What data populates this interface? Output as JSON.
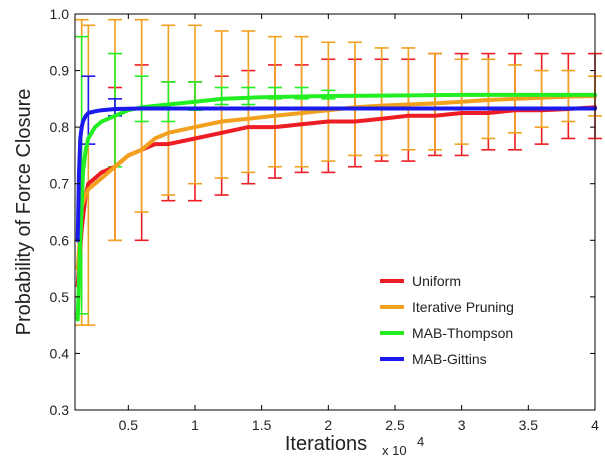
{
  "chart_data": {
    "type": "line",
    "xlabel": "Iterations",
    "x_multiplier": "x 10",
    "x_multiplier_exp": "4",
    "ylabel": "Probability of Force Closure",
    "xlim": [
      0.1,
      4
    ],
    "ylim": [
      0.3,
      1.0
    ],
    "x_ticks": [
      {
        "value": 0.5,
        "label": "0.5"
      },
      {
        "value": 1,
        "label": "1"
      },
      {
        "value": 1.5,
        "label": "1.5"
      },
      {
        "value": 2,
        "label": "2"
      },
      {
        "value": 2.5,
        "label": "2.5"
      },
      {
        "value": 3,
        "label": "3"
      },
      {
        "value": 3.5,
        "label": "3.5"
      },
      {
        "value": 4,
        "label": "4"
      }
    ],
    "y_ticks": [
      {
        "value": 0.3,
        "label": "0.3"
      },
      {
        "value": 0.4,
        "label": "0.4"
      },
      {
        "value": 0.5,
        "label": "0.5"
      },
      {
        "value": 0.6,
        "label": "0.6"
      },
      {
        "value": 0.7,
        "label": "0.7"
      },
      {
        "value": 0.8,
        "label": "0.8"
      },
      {
        "value": 0.9,
        "label": "0.9"
      },
      {
        "value": 1,
        "label": "1.0"
      }
    ],
    "grid": false,
    "legend_position": "lower-right",
    "series": [
      {
        "name": "Uniform",
        "color": "#ee1c24",
        "x": [
          0.12,
          0.15,
          0.18,
          0.2,
          0.25,
          0.3,
          0.4,
          0.5,
          0.6,
          0.7,
          0.8,
          1.0,
          1.2,
          1.4,
          1.6,
          1.8,
          2.0,
          2.2,
          2.4,
          2.6,
          2.8,
          3.0,
          3.2,
          3.4,
          3.6,
          3.8,
          4.0
        ],
        "y": [
          0.52,
          0.62,
          0.68,
          0.7,
          0.71,
          0.72,
          0.73,
          0.75,
          0.76,
          0.77,
          0.77,
          0.78,
          0.79,
          0.8,
          0.8,
          0.805,
          0.81,
          0.81,
          0.815,
          0.82,
          0.82,
          0.825,
          0.825,
          0.83,
          0.83,
          0.832,
          0.835
        ],
        "error_bars": [
          {
            "x": 0.4,
            "low": 0.6,
            "high": 0.87
          },
          {
            "x": 0.6,
            "low": 0.6,
            "high": 0.91
          },
          {
            "x": 0.8,
            "low": 0.67,
            "high": 0.88
          },
          {
            "x": 1.0,
            "low": 0.67,
            "high": 0.88
          },
          {
            "x": 1.2,
            "low": 0.68,
            "high": 0.89
          },
          {
            "x": 1.4,
            "low": 0.7,
            "high": 0.9
          },
          {
            "x": 1.6,
            "low": 0.71,
            "high": 0.91
          },
          {
            "x": 1.8,
            "low": 0.72,
            "high": 0.91
          },
          {
            "x": 2.0,
            "low": 0.72,
            "high": 0.92
          },
          {
            "x": 2.2,
            "low": 0.73,
            "high": 0.92
          },
          {
            "x": 2.4,
            "low": 0.74,
            "high": 0.92
          },
          {
            "x": 2.6,
            "low": 0.74,
            "high": 0.92
          },
          {
            "x": 2.8,
            "low": 0.75,
            "high": 0.93
          },
          {
            "x": 3.0,
            "low": 0.75,
            "high": 0.93
          },
          {
            "x": 3.2,
            "low": 0.76,
            "high": 0.93
          },
          {
            "x": 3.4,
            "low": 0.76,
            "high": 0.93
          },
          {
            "x": 3.6,
            "low": 0.77,
            "high": 0.93
          },
          {
            "x": 3.8,
            "low": 0.78,
            "high": 0.93
          },
          {
            "x": 4.0,
            "low": 0.78,
            "high": 0.93
          }
        ]
      },
      {
        "name": "Iterative Pruning",
        "color": "#f2a11e",
        "x": [
          0.12,
          0.15,
          0.18,
          0.2,
          0.25,
          0.3,
          0.4,
          0.5,
          0.6,
          0.7,
          0.8,
          1.0,
          1.2,
          1.4,
          1.6,
          1.8,
          2.0,
          2.2,
          2.4,
          2.6,
          2.8,
          3.0,
          3.2,
          3.4,
          3.6,
          3.8,
          4.0
        ],
        "y": [
          0.55,
          0.66,
          0.68,
          0.69,
          0.7,
          0.71,
          0.73,
          0.75,
          0.76,
          0.78,
          0.79,
          0.8,
          0.81,
          0.815,
          0.82,
          0.825,
          0.83,
          0.835,
          0.838,
          0.84,
          0.842,
          0.845,
          0.848,
          0.85,
          0.852,
          0.854,
          0.855
        ],
        "error_bars": [
          {
            "x": 0.15,
            "low": 0.45,
            "high": 0.99
          },
          {
            "x": 0.2,
            "low": 0.45,
            "high": 0.98
          },
          {
            "x": 0.4,
            "low": 0.6,
            "high": 0.99
          },
          {
            "x": 0.6,
            "low": 0.65,
            "high": 0.99
          },
          {
            "x": 0.8,
            "low": 0.68,
            "high": 0.98
          },
          {
            "x": 1.0,
            "low": 0.7,
            "high": 0.98
          },
          {
            "x": 1.2,
            "low": 0.71,
            "high": 0.97
          },
          {
            "x": 1.4,
            "low": 0.72,
            "high": 0.97
          },
          {
            "x": 1.6,
            "low": 0.73,
            "high": 0.96
          },
          {
            "x": 1.8,
            "low": 0.73,
            "high": 0.96
          },
          {
            "x": 2.0,
            "low": 0.74,
            "high": 0.95
          },
          {
            "x": 2.2,
            "low": 0.75,
            "high": 0.95
          },
          {
            "x": 2.4,
            "low": 0.75,
            "high": 0.94
          },
          {
            "x": 2.6,
            "low": 0.76,
            "high": 0.94
          },
          {
            "x": 2.8,
            "low": 0.76,
            "high": 0.93
          },
          {
            "x": 3.0,
            "low": 0.77,
            "high": 0.92
          },
          {
            "x": 3.2,
            "low": 0.78,
            "high": 0.92
          },
          {
            "x": 3.4,
            "low": 0.79,
            "high": 0.91
          },
          {
            "x": 3.6,
            "low": 0.8,
            "high": 0.9
          },
          {
            "x": 3.8,
            "low": 0.81,
            "high": 0.9
          },
          {
            "x": 4.0,
            "low": 0.82,
            "high": 0.89
          }
        ]
      },
      {
        "name": "MAB-Thompson",
        "color": "#22ee22",
        "x": [
          0.12,
          0.14,
          0.16,
          0.18,
          0.2,
          0.25,
          0.3,
          0.4,
          0.5,
          0.6,
          0.8,
          1.0,
          1.2,
          1.5,
          2.0,
          2.5,
          3.0,
          3.5,
          4.0
        ],
        "y": [
          0.46,
          0.6,
          0.72,
          0.76,
          0.78,
          0.8,
          0.81,
          0.82,
          0.83,
          0.835,
          0.84,
          0.845,
          0.85,
          0.853,
          0.855,
          0.856,
          0.857,
          0.857,
          0.857
        ],
        "error_bars": [
          {
            "x": 0.15,
            "low": 0.47,
            "high": 0.96
          },
          {
            "x": 0.4,
            "low": 0.73,
            "high": 0.93
          },
          {
            "x": 0.6,
            "low": 0.81,
            "high": 0.89
          },
          {
            "x": 0.8,
            "low": 0.81,
            "high": 0.88
          },
          {
            "x": 1.0,
            "low": 0.83,
            "high": 0.88
          },
          {
            "x": 1.2,
            "low": 0.84,
            "high": 0.87
          },
          {
            "x": 1.4,
            "low": 0.84,
            "high": 0.87
          },
          {
            "x": 1.6,
            "low": 0.85,
            "high": 0.87
          },
          {
            "x": 1.8,
            "low": 0.85,
            "high": 0.87
          },
          {
            "x": 2.0,
            "low": 0.85,
            "high": 0.865
          }
        ]
      },
      {
        "name": "MAB-Gittins",
        "color": "#1a1aee",
        "x": [
          0.12,
          0.13,
          0.14,
          0.15,
          0.16,
          0.18,
          0.2,
          0.25,
          0.3,
          0.4,
          0.6,
          1.0,
          2.0,
          3.0,
          4.0
        ],
        "y": [
          0.6,
          0.72,
          0.78,
          0.8,
          0.81,
          0.82,
          0.825,
          0.828,
          0.83,
          0.832,
          0.833,
          0.833,
          0.833,
          0.833,
          0.833
        ],
        "error_bars": [
          {
            "x": 0.2,
            "low": 0.77,
            "high": 0.89
          },
          {
            "x": 0.4,
            "low": 0.82,
            "high": 0.85
          }
        ]
      }
    ]
  }
}
